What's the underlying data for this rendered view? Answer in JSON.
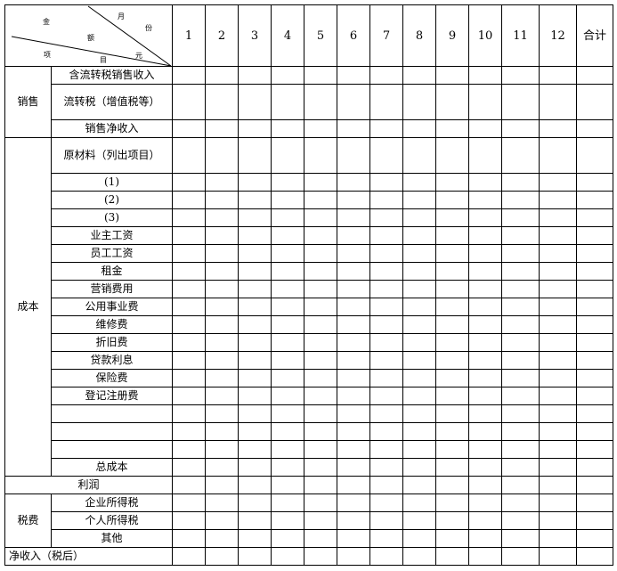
{
  "header": {
    "corner": {
      "amount": [
        "金",
        "额",
        "元"
      ],
      "month": [
        "月",
        "份"
      ],
      "item": [
        "项",
        "目"
      ]
    },
    "months": [
      "1",
      "2",
      "3",
      "4",
      "5",
      "6",
      "7",
      "8",
      "9",
      "10",
      "11",
      "12"
    ],
    "total": "合计"
  },
  "sales": {
    "group": "销售",
    "rows": [
      "含流转税销售收入",
      "流转税（增值税等）",
      "销售净收入"
    ]
  },
  "cost": {
    "group": "成本",
    "rows": [
      "原材料（列出项目）",
      "(1)",
      "(2)",
      "(3)",
      "业主工资",
      "员工工资",
      "租金",
      "营销费用",
      "公用事业费",
      "维修费",
      "折旧费",
      "贷款利息",
      "保险费",
      "登记注册费",
      "",
      "",
      "",
      "总成本"
    ]
  },
  "profit": "利润",
  "tax": {
    "group": "税费",
    "rows": [
      "企业所得税",
      "个人所得税",
      "其他"
    ]
  },
  "net_income": "净收入（税后）"
}
